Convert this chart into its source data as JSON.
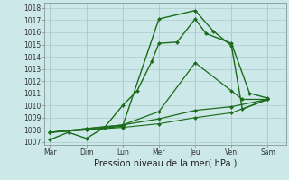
{
  "x_labels": [
    "Mar",
    "Dim",
    "Lun",
    "Mer",
    "Jeu",
    "Ven",
    "Sam"
  ],
  "x_tick_positions": [
    0,
    1,
    2,
    3,
    4,
    5,
    6
  ],
  "lines": [
    {
      "label": "line1_top",
      "x": [
        0,
        0.5,
        1,
        1.5,
        2,
        2.4,
        2.8,
        3,
        3.5,
        4,
        4.3,
        5,
        5.5,
        6
      ],
      "y": [
        1007.2,
        1007.8,
        1007.3,
        1008.2,
        1010.0,
        1011.2,
        1013.6,
        1015.1,
        1015.2,
        1017.1,
        1015.9,
        1015.1,
        1011.0,
        1010.6
      ],
      "linewidth": 1.0,
      "linestyle": "-",
      "marker": "D",
      "markersize": 2.0
    },
    {
      "label": "line2_steep",
      "x": [
        0,
        1,
        2,
        3,
        4,
        4.5,
        5,
        5.3,
        6
      ],
      "y": [
        1007.8,
        1008.0,
        1008.3,
        1017.1,
        1017.8,
        1016.1,
        1014.9,
        1009.7,
        1010.5
      ],
      "linewidth": 1.0,
      "linestyle": "-",
      "marker": "D",
      "markersize": 2.0
    },
    {
      "label": "line3_mid",
      "x": [
        0,
        1,
        2,
        3,
        4,
        5,
        5.3,
        6
      ],
      "y": [
        1007.8,
        1008.1,
        1008.4,
        1009.5,
        1013.5,
        1011.2,
        1010.5,
        1010.5
      ],
      "linewidth": 0.9,
      "linestyle": "-",
      "marker": "D",
      "markersize": 2.0
    },
    {
      "label": "line4_low",
      "x": [
        0,
        1,
        2,
        3,
        4,
        5,
        6
      ],
      "y": [
        1007.8,
        1008.1,
        1008.4,
        1008.9,
        1009.6,
        1009.9,
        1010.5
      ],
      "linewidth": 0.9,
      "linestyle": "-",
      "marker": "D",
      "markersize": 2.0
    },
    {
      "label": "line5_bottom",
      "x": [
        0,
        1,
        2,
        3,
        4,
        5,
        6
      ],
      "y": [
        1007.8,
        1008.0,
        1008.2,
        1008.5,
        1009.0,
        1009.4,
        1010.5
      ],
      "linewidth": 0.8,
      "linestyle": "-",
      "marker": "D",
      "markersize": 2.0
    }
  ],
  "ylim": [
    1006.8,
    1018.4
  ],
  "yticks": [
    1007,
    1008,
    1009,
    1010,
    1011,
    1012,
    1013,
    1014,
    1015,
    1016,
    1017,
    1018
  ],
  "xlim": [
    -0.15,
    6.5
  ],
  "xlabel": "Pression niveau de la mer( hPa )",
  "line_color": "#1a6b1a",
  "bg_color": "#cce8e8",
  "grid_color": "#aacccc",
  "tick_fontsize": 5.5,
  "label_fontsize": 7.0
}
